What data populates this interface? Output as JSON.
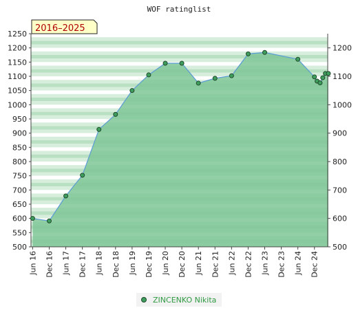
{
  "chart_data": {
    "type": "area",
    "title": "WOF ratinglist",
    "range_label": "2016–2025",
    "xlabel": "",
    "ylabel": "",
    "ylim": [
      500,
      1250
    ],
    "yticks_left": [
      500,
      550,
      600,
      650,
      700,
      750,
      800,
      850,
      900,
      950,
      1000,
      1050,
      1100,
      1150,
      1200,
      1250
    ],
    "yticks_right": [
      500,
      600,
      700,
      800,
      900,
      1000,
      1100,
      1200
    ],
    "xticks": [
      "Jun 16",
      "Dec 16",
      "Jun 17",
      "Dec 17",
      "Jun 18",
      "Dec 18",
      "Jun 19",
      "Dec 19",
      "Jun 20",
      "Dec 20",
      "Jun 21",
      "Dec 21",
      "Jun 22",
      "Dec 22",
      "Jun 23",
      "Dec 23",
      "Jun 24",
      "Dec 24"
    ],
    "xlim": [
      2016.45,
      2025.4
    ],
    "grid": "horizontal bands",
    "legend_position": "bottom-center",
    "colors": {
      "fill": "#7fc597",
      "line": "#5b9bd5",
      "marker": "#3f9d5e",
      "label_bg": "#ffffc8",
      "range_text": "#b00000",
      "legend_text": "#2e9a42"
    },
    "series": [
      {
        "name": "ZINCENKO Nikita",
        "points": [
          {
            "x": 2016.5,
            "y": 600
          },
          {
            "x": 2017.0,
            "y": 591
          },
          {
            "x": 2017.5,
            "y": 679
          },
          {
            "x": 2018.0,
            "y": 752
          },
          {
            "x": 2018.5,
            "y": 913
          },
          {
            "x": 2019.0,
            "y": 966
          },
          {
            "x": 2019.5,
            "y": 1050
          },
          {
            "x": 2020.0,
            "y": 1105
          },
          {
            "x": 2020.5,
            "y": 1146
          },
          {
            "x": 2021.0,
            "y": 1146
          },
          {
            "x": 2021.5,
            "y": 1076
          },
          {
            "x": 2022.0,
            "y": 1093
          },
          {
            "x": 2022.5,
            "y": 1102
          },
          {
            "x": 2023.0,
            "y": 1179
          },
          {
            "x": 2023.5,
            "y": 1184
          },
          {
            "x": 2024.5,
            "y": 1160
          },
          {
            "x": 2025.0,
            "y": 1098
          },
          {
            "x": 2025.08,
            "y": 1083
          },
          {
            "x": 2025.17,
            "y": 1077
          },
          {
            "x": 2025.25,
            "y": 1095
          },
          {
            "x": 2025.33,
            "y": 1110
          },
          {
            "x": 2025.42,
            "y": 1110
          }
        ]
      }
    ]
  }
}
